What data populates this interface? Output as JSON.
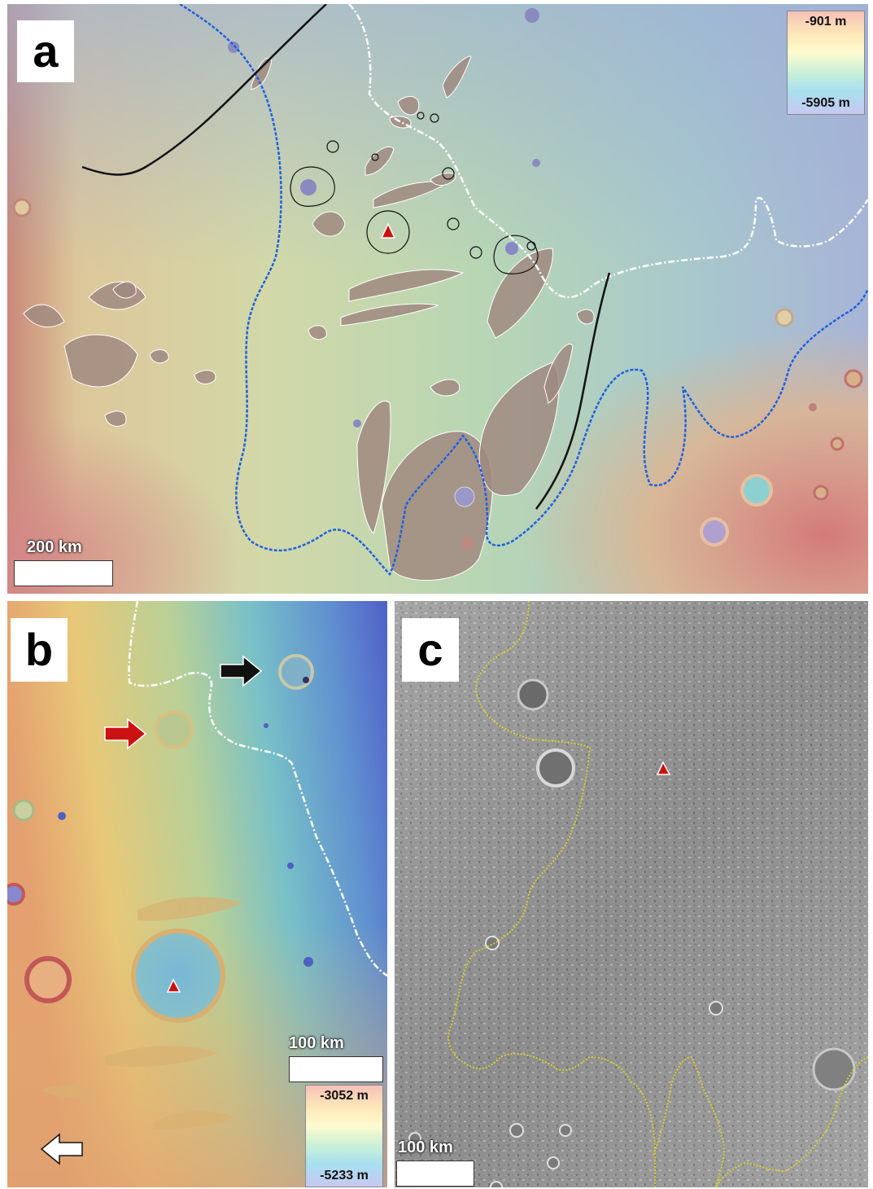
{
  "panels": [
    {
      "id": "a",
      "label": "a",
      "scale_label": "200 km",
      "legend": {
        "max": "-901 m",
        "min": "-5905 m"
      }
    },
    {
      "id": "b",
      "label": "b",
      "scale_label": "100 km",
      "legend": {
        "max": "-3052 m",
        "min": "-5233 m"
      }
    },
    {
      "id": "c",
      "label": "c",
      "scale_label": "100 km"
    }
  ],
  "colors": {
    "dem_high": "#d98a7a",
    "dem_mid_high": "#e9d8a0",
    "dem_mid": "#a8d8b8",
    "dem_low": "#8fb6d6",
    "dem_lowest": "#8a8fd0",
    "streamlined_island": "#a08a80",
    "blue_contour": "#2060e0",
    "white_contour": "#ffffff",
    "black_line": "#111111",
    "yellow_contour": "#e0d020",
    "red_marker": "#cc1111",
    "grayscale_bg": "#9a9a9a"
  },
  "icons": [
    "red-triangle-marker-icon",
    "red-arrow-icon",
    "black-arrow-icon",
    "white-arrow-icon"
  ]
}
